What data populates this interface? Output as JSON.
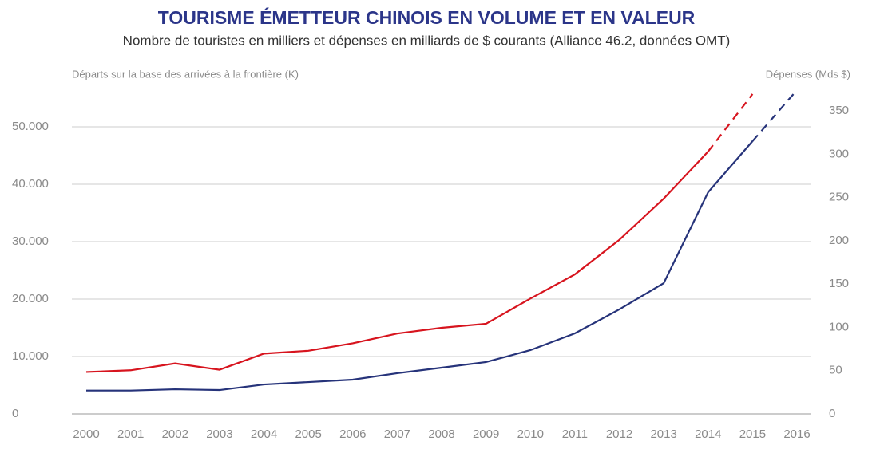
{
  "chart_data": {
    "type": "line",
    "title": "TOURISME ÉMETTEUR CHINOIS EN VOLUME ET EN VALEUR",
    "subtitle": "Nombre de touristes en milliers et dépenses en milliards de $ courants (Alliance 46.2, données OMT)",
    "y_label": "Départs sur la base des arrivées à la frontière (K)",
    "y2_label": "Dépenses (Mds $)",
    "x": [
      2000,
      2001,
      2002,
      2003,
      2004,
      2005,
      2006,
      2007,
      2008,
      2009,
      2010,
      2011,
      2012,
      2013,
      2014,
      2015,
      2016
    ],
    "xlim": [
      2000,
      2016
    ],
    "series": [
      {
        "color": "#d7141e",
        "dashed_from": 14,
        "values": [
          7300,
          7600,
          8800,
          7700,
          10500,
          11000,
          12300,
          14000,
          15000,
          15700,
          20100,
          24300,
          30300,
          37500,
          45700,
          55700,
          null
        ]
      },
      {
        "color": "#26337a",
        "axis": "y2",
        "dashed_from": 15,
        "values": [
          27,
          27,
          28.5,
          27.6,
          34,
          36.8,
          39.6,
          47,
          53.4,
          59.9,
          73.7,
          93,
          120.7,
          151,
          256,
          315,
          374
        ]
      }
    ],
    "ylim": [
      0,
      57000
    ],
    "yticks": [
      0,
      {
        "value": 10000,
        "label": "10.000"
      },
      {
        "value": 20000,
        "label": "20.000"
      },
      {
        "value": 30000,
        "label": "30.000"
      },
      {
        "value": 40000,
        "label": "40.000"
      },
      {
        "value": 50000,
        "label": "50.000"
      }
    ],
    "y2lim": [
      0,
      378
    ],
    "y2ticks": [
      0,
      50,
      100,
      150,
      200,
      250,
      300,
      350
    ],
    "grid": true
  }
}
